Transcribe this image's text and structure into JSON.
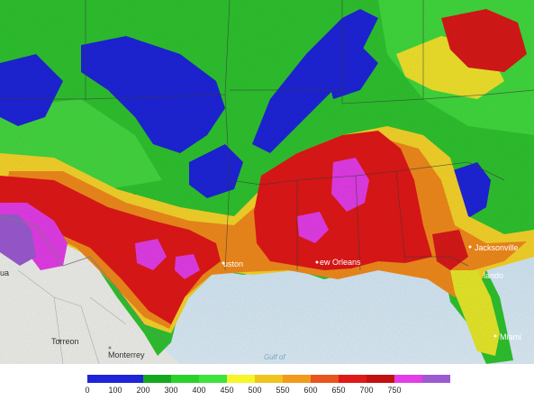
{
  "legend": {
    "colors": [
      "#1e24d8",
      "#1e24d8",
      "#15a81f",
      "#2bd12b",
      "#3ee33e",
      "#f5f52a",
      "#f1c31f",
      "#f29a1b",
      "#e8541b",
      "#e01818",
      "#c51010",
      "#e23de6",
      "#9b5ad0"
    ],
    "labels": [
      "0",
      "100",
      "200",
      "300",
      "400",
      "450",
      "500",
      "550",
      "600",
      "650",
      "700",
      "750"
    ]
  },
  "map": {
    "cities": {
      "jacksonville": "Jacksonville",
      "orlando": "lando",
      "miami": "Miami",
      "new_orleans": "ew Orleans",
      "houston": "uston",
      "torreon": "Torreon",
      "monterrey": "Monterrey",
      "chihuahua": "ua",
      "gulf": "Gulf of"
    }
  }
}
